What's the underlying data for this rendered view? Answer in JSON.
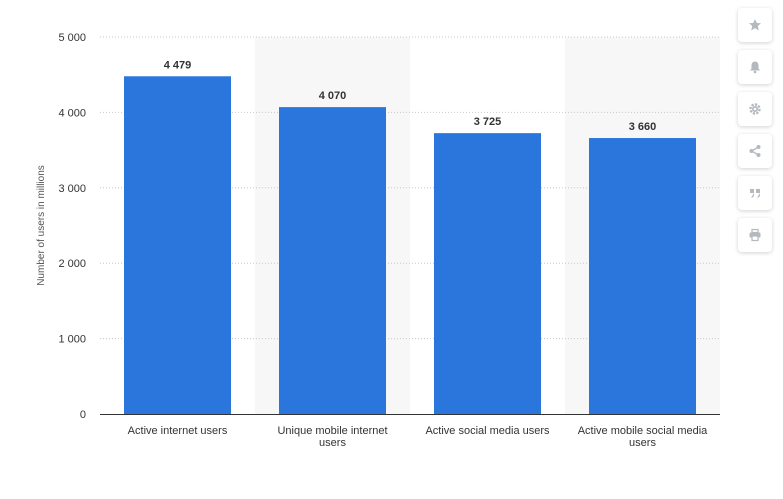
{
  "chart_data": {
    "type": "bar",
    "categories": [
      [
        "Active internet users"
      ],
      [
        "Unique mobile internet",
        "users"
      ],
      [
        "Active social media users"
      ],
      [
        "Active mobile social media",
        "users"
      ]
    ],
    "values": [
      4479,
      4070,
      3725,
      3660
    ],
    "value_labels": [
      "4 479",
      "4 070",
      "3 725",
      "3 660"
    ],
    "ylabel": "Number of users in millions",
    "ylim": [
      0,
      5000
    ],
    "yticks": [
      0,
      1000,
      2000,
      3000,
      4000,
      5000
    ],
    "ytick_labels": [
      "0",
      "1 000",
      "2 000",
      "3 000",
      "4 000",
      "5 000"
    ],
    "grid": true,
    "bar_color": "#2a76dd"
  },
  "toolbar": {
    "icons": [
      "star-icon",
      "bell-icon",
      "gear-icon",
      "share-icon",
      "quote-icon",
      "print-icon"
    ]
  }
}
